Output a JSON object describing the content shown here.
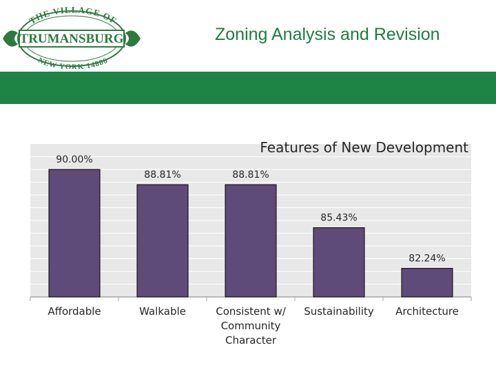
{
  "header": {
    "logo": {
      "top_text": "THE VILLAGE OF",
      "name": "TRUMANSBURG",
      "bottom_text": "NEW YORK 14886"
    },
    "title": "Zoning Analysis and Revision"
  },
  "colors": {
    "brand_green": "#1e7b3f",
    "band_green": "#1e8446",
    "bar_fill": "#5f4b7a",
    "plot_bg": "#e8e8e8"
  },
  "chart_data": {
    "type": "bar",
    "title": "Features of New Development",
    "categories": [
      "Affordable",
      "Walkable",
      "Consistent w/ Community Character",
      "Sustainability",
      "Architecture"
    ],
    "values": [
      90.0,
      88.81,
      88.81,
      85.43,
      82.24
    ],
    "data_labels": [
      "90.00%",
      "88.81%",
      "88.81%",
      "85.43%",
      "82.24%"
    ],
    "ylim": [
      80,
      92
    ],
    "grid": true
  }
}
